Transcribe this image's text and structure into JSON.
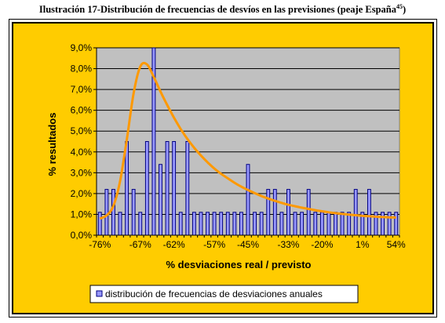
{
  "caption": {
    "text": "Ilustración 17-Distribución de frecuencias de desvíos en las previsiones (peaje España",
    "superscript": "45",
    "suffix": ")"
  },
  "chart_data": {
    "type": "bar",
    "title": "",
    "xlabel": "% desviaciones real / previsto",
    "ylabel": "% resultados",
    "ylim": [
      0,
      9
    ],
    "y_ticks": [
      "0,0%",
      "1,0%",
      "2,0%",
      "3,0%",
      "4,0%",
      "5,0%",
      "6,0%",
      "7,0%",
      "8,0%",
      "9,0%"
    ],
    "x_tick_labels": [
      "-76%",
      "-67%",
      "-62%",
      "-57%",
      "-45%",
      "-33%",
      "-20%",
      "1%",
      "54%"
    ],
    "grid": true,
    "legend_position": "bottom",
    "series": [
      {
        "name": "distribución de frecuencias de desviaciones anuales",
        "color": "#9999ff",
        "values": [
          1.1,
          2.2,
          2.2,
          1.1,
          4.5,
          2.2,
          1.1,
          4.5,
          9.0,
          3.4,
          4.5,
          4.5,
          1.1,
          4.5,
          1.1,
          1.1,
          1.1,
          1.1,
          1.1,
          1.1,
          1.1,
          1.1,
          3.4,
          1.1,
          1.1,
          2.2,
          2.2,
          1.1,
          2.2,
          1.1,
          1.1,
          2.2,
          1.1,
          1.1,
          1.1,
          1.1,
          1.1,
          1.1,
          2.2,
          1.1,
          2.2,
          1.1,
          1.1,
          1.1,
          1.1
        ]
      }
    ],
    "fit_curve": {
      "color": "#ff9900",
      "values": [
        0.8,
        0.95,
        1.4,
        2.6,
        4.6,
        6.8,
        8.1,
        8.2,
        7.6,
        6.9,
        6.25,
        5.65,
        5.1,
        4.62,
        4.2,
        3.83,
        3.5,
        3.2,
        2.95,
        2.73,
        2.52,
        2.33,
        2.17,
        2.02,
        1.88,
        1.76,
        1.65,
        1.55,
        1.46,
        1.39,
        1.32,
        1.26,
        1.2,
        1.15,
        1.1,
        1.06,
        1.02,
        0.99,
        0.96,
        0.93,
        0.91,
        0.89,
        0.87,
        0.86,
        0.85
      ]
    },
    "colors": {
      "outer_background": "#ffcc00",
      "plot_background": "#c0c0c0",
      "bar_fill": "#9999ff",
      "bar_stroke": "#000080",
      "curve": "#ff9900"
    }
  }
}
